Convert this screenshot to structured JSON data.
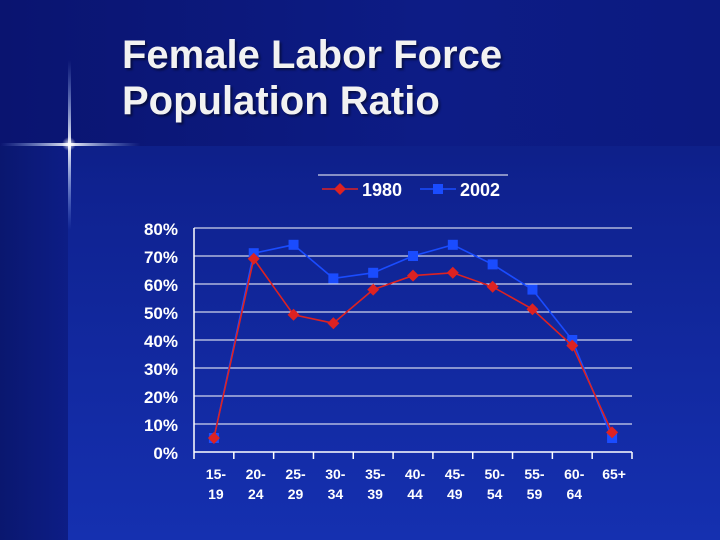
{
  "slide": {
    "title_line1": "Female Labor Force",
    "title_line2": "Population Ratio"
  },
  "chart_data": {
    "type": "line",
    "title": "",
    "xlabel": "",
    "ylabel": "",
    "categories": [
      "15-\n19",
      "20-\n24",
      "25-\n29",
      "30-\n34",
      "35-\n39",
      "40-\n44",
      "45-\n49",
      "50-\n54",
      "55-\n59",
      "60-\n64",
      "65+"
    ],
    "ylim": [
      0,
      80
    ],
    "yticks": [
      "0%",
      "10%",
      "20%",
      "30%",
      "40%",
      "50%",
      "60%",
      "70%",
      "80%"
    ],
    "grid": true,
    "legend_position": "top",
    "series": [
      {
        "name": "1980",
        "color": "#dd2222",
        "marker": "diamond",
        "values": [
          5,
          69,
          49,
          46,
          58,
          63,
          64,
          59,
          51,
          38,
          7
        ]
      },
      {
        "name": "2002",
        "color": "#1a4cff",
        "marker": "square",
        "values": [
          5,
          71,
          74,
          62,
          64,
          70,
          74,
          67,
          58,
          40,
          5
        ]
      }
    ]
  }
}
